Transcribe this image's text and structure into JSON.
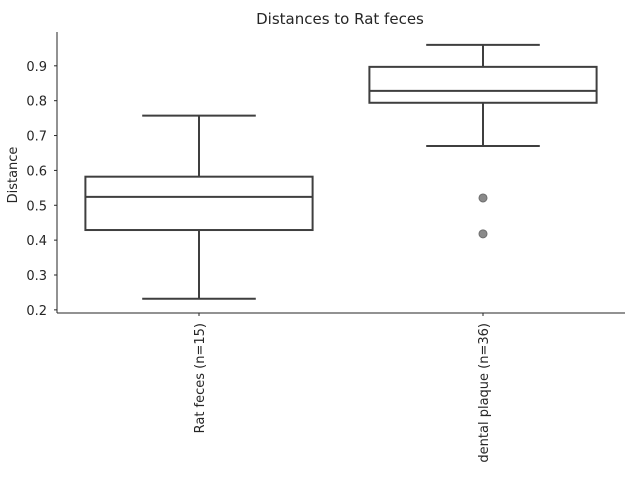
{
  "chart_data": {
    "type": "box",
    "title": "Distances to Rat feces",
    "y_label": "Distance",
    "categories": [
      "Rat feces (n=15)",
      "dental plaque (n=36)"
    ],
    "boxes": [
      {
        "whislo": 0.232,
        "q1": 0.429,
        "med": 0.524,
        "q3": 0.582,
        "whishi": 0.757,
        "fliers": []
      },
      {
        "whislo": 0.67,
        "q1": 0.794,
        "med": 0.828,
        "q3": 0.897,
        "whishi": 0.96,
        "fliers": [
          0.521,
          0.418
        ]
      }
    ],
    "ylim": [
      0.191,
      0.997
    ],
    "yticks": [
      0.2,
      0.3,
      0.4,
      0.5,
      0.6,
      0.7,
      0.8,
      0.9
    ],
    "box_fill": "#ffffff",
    "line_color": "#3f3f3f",
    "flier_color": "#8a8a8a",
    "grid": false
  }
}
